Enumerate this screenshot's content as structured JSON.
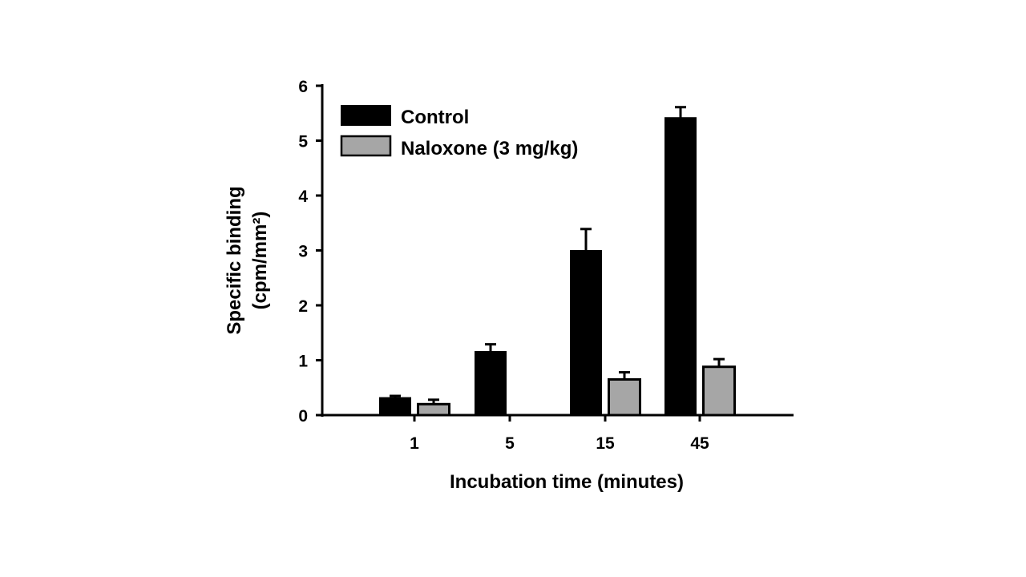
{
  "chart_data": {
    "type": "bar",
    "title": "",
    "xlabel": "Incubation time (minutes)",
    "ylabel_line1": "Specific binding",
    "ylabel_line2": "(cpm/mm²)",
    "categories": [
      "1",
      "5",
      "15",
      "45"
    ],
    "ylim": [
      0,
      6
    ],
    "yticks": [
      "0",
      "1",
      "2",
      "3",
      "4",
      "5",
      "6"
    ],
    "series": [
      {
        "name": "Control",
        "color": "#000000",
        "values": [
          0.32,
          1.16,
          3.0,
          5.42
        ],
        "errors": [
          0.03,
          0.13,
          0.39,
          0.19
        ]
      },
      {
        "name": "Naloxone (3 mg/kg)",
        "color": "#a6a6a6",
        "values": [
          0.2,
          null,
          0.65,
          0.88
        ],
        "errors": [
          0.08,
          null,
          0.13,
          0.14
        ]
      }
    ],
    "legend_position": "top-left",
    "grid": false
  }
}
